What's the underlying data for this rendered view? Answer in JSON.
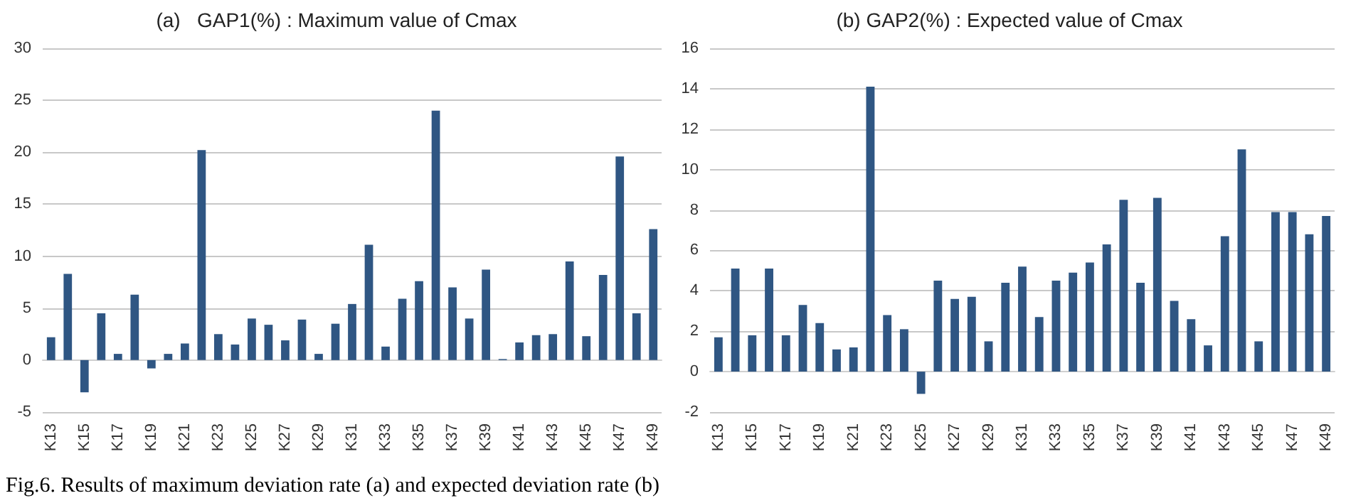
{
  "chart_data": [
    {
      "type": "bar",
      "title": "(a)   GAP1(%) : Maximum value of Cmax",
      "categories": [
        "K13",
        null,
        "K15",
        null,
        "K17",
        null,
        "K19",
        null,
        "K21",
        null,
        "K23",
        null,
        "K25",
        null,
        "K27",
        null,
        "K29",
        null,
        "K31",
        null,
        "K33",
        null,
        "K35",
        null,
        "K37",
        null,
        "K39",
        null,
        "K41",
        null,
        "K43",
        null,
        "K45",
        null,
        "K47",
        null,
        "K49"
      ],
      "values": [
        2.2,
        8.3,
        -3.1,
        4.5,
        0.6,
        6.3,
        -0.8,
        0.6,
        1.6,
        20.2,
        2.5,
        1.5,
        4.0,
        3.4,
        1.9,
        3.9,
        0.6,
        3.5,
        5.4,
        11.1,
        1.3,
        5.9,
        7.6,
        24.0,
        7.0,
        4.0,
        8.7,
        0.1,
        1.7,
        2.4,
        2.5,
        9.5,
        2.3,
        8.2,
        19.6,
        4.5,
        12.6
      ],
      "color": "#2f5683",
      "ylim": [
        -5,
        30
      ],
      "yticks": [
        -5,
        0,
        5,
        10,
        15,
        20,
        25,
        30
      ],
      "grid": "y",
      "annotations": [
        "Fig.6. Results of maximum deviation rate (a) and expected deviation rate (b)"
      ]
    },
    {
      "type": "bar",
      "title": "(b) GAP2(%) : Expected value of Cmax",
      "categories": [
        "K13",
        null,
        "K15",
        null,
        "K17",
        null,
        "K19",
        null,
        "K21",
        null,
        "K23",
        null,
        "K25",
        null,
        "K27",
        null,
        "K29",
        null,
        "K31",
        null,
        "K33",
        null,
        "K35",
        null,
        "K37",
        null,
        "K39",
        null,
        "K41",
        null,
        "K43",
        null,
        "K45",
        null,
        "K47",
        null,
        "K49"
      ],
      "values": [
        1.7,
        5.1,
        1.8,
        5.1,
        1.8,
        3.3,
        2.4,
        1.1,
        1.2,
        14.1,
        2.8,
        2.1,
        -1.1,
        4.5,
        3.6,
        3.7,
        1.5,
        4.4,
        5.2,
        2.7,
        4.5,
        4.9,
        5.4,
        6.3,
        8.5,
        4.4,
        8.6,
        3.5,
        2.6,
        1.3,
        6.7,
        11.0,
        1.5,
        7.9,
        7.9,
        6.8,
        7.7
      ],
      "color": "#2f5683",
      "ylim": [
        -2,
        16
      ],
      "yticks": [
        -2,
        0,
        2,
        4,
        6,
        8,
        10,
        12,
        14,
        16
      ],
      "grid": "y"
    }
  ]
}
